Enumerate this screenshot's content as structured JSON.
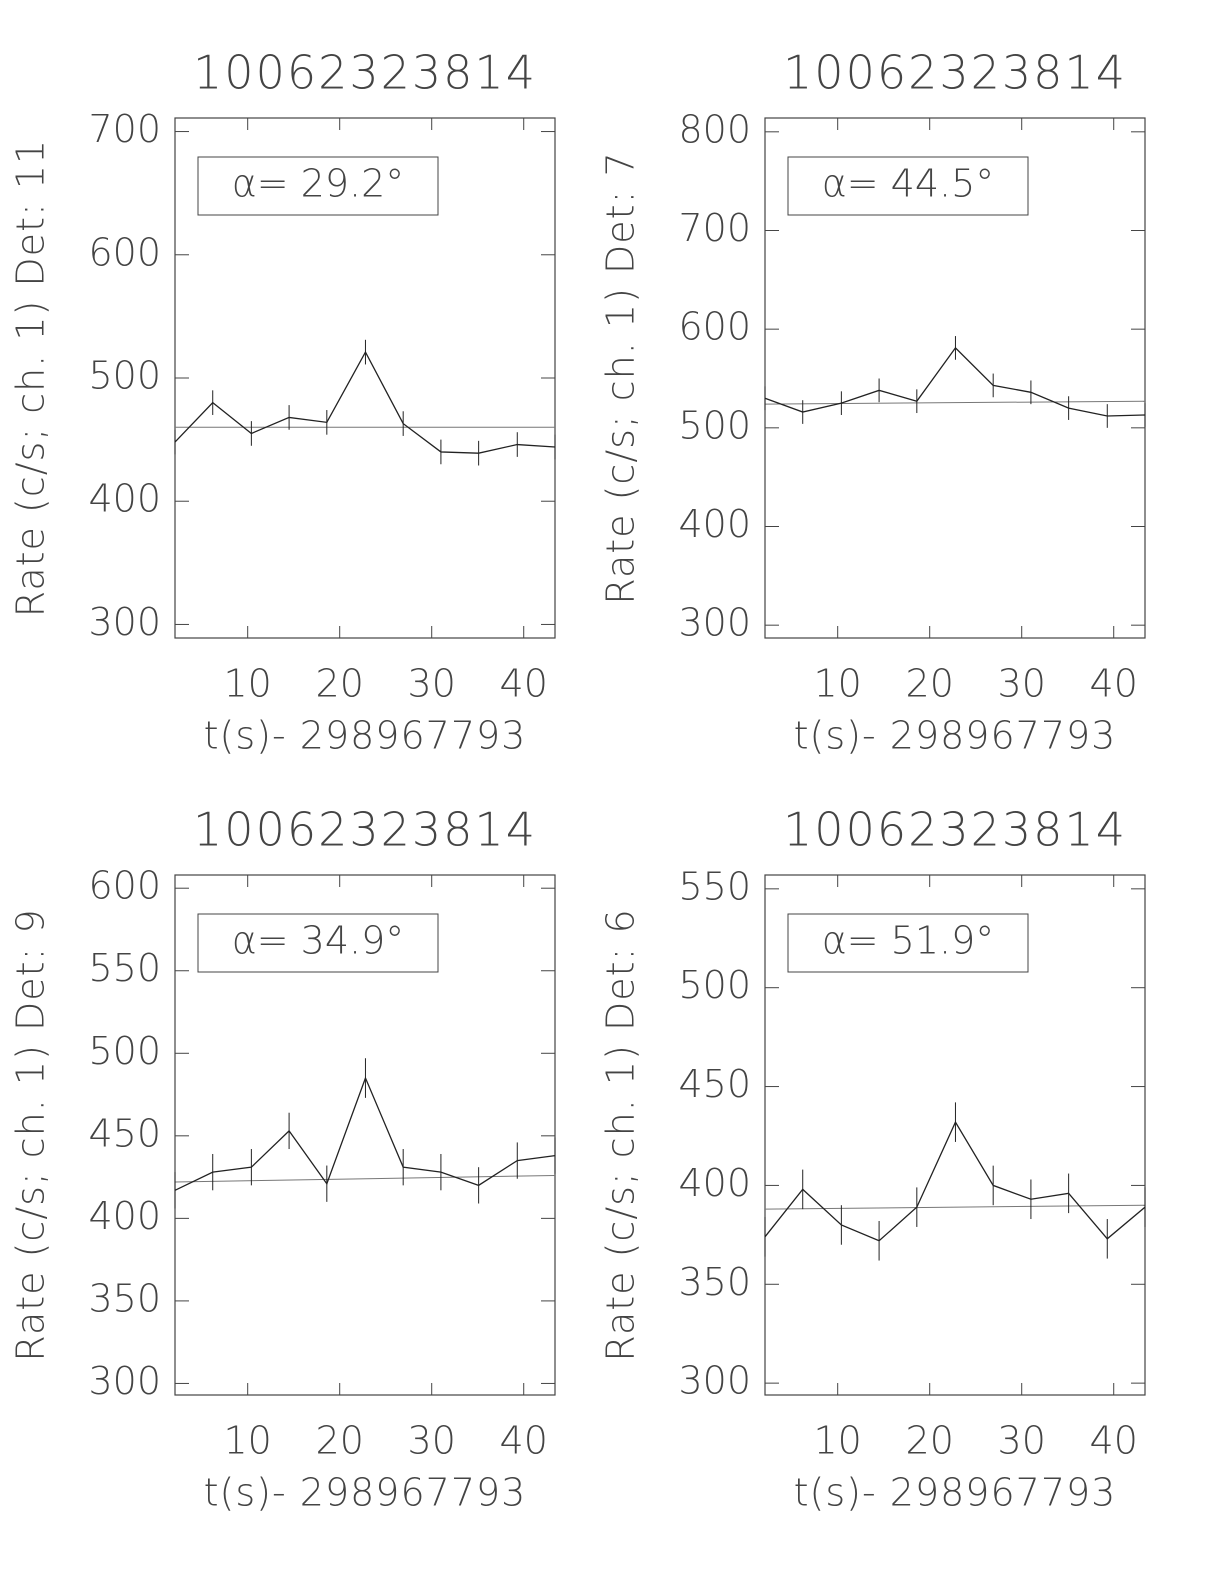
{
  "chart_data": [
    {
      "type": "line",
      "title": "10062323814",
      "x_label": "t(s)- 298967793",
      "y_label": "Rate (c/s; ch. 1) Det: 11",
      "annotation": "α= 29.2°",
      "x": [
        2.1,
        6.2,
        10.4,
        14.5,
        18.6,
        22.8,
        26.9,
        31.0,
        35.1,
        39.3,
        43.4
      ],
      "values": [
        448,
        480,
        455,
        468,
        464,
        521,
        463,
        440,
        439,
        446,
        444
      ],
      "errors": [
        10,
        10,
        10,
        10,
        10,
        10,
        10,
        10,
        10,
        10,
        10
      ],
      "fit_x": [
        2.1,
        43.4
      ],
      "fit_values": [
        460,
        460
      ],
      "xlim": [
        2.1,
        43.4
      ],
      "xticks": [
        10,
        20,
        30,
        40
      ],
      "ylim": [
        289,
        711
      ],
      "yticks": [
        300,
        400,
        500,
        600,
        700
      ],
      "color": "#222"
    },
    {
      "type": "line",
      "title": "10062323814",
      "x_label": "t(s)- 298967793",
      "y_label": "Rate (c/s; ch. 1) Det: 7",
      "annotation": "α= 44.5°",
      "x": [
        2.1,
        6.2,
        10.4,
        14.5,
        18.6,
        22.8,
        26.9,
        31.0,
        35.1,
        39.3,
        43.4
      ],
      "values": [
        530,
        516,
        525,
        538,
        527,
        581,
        543,
        536,
        520,
        512,
        513
      ],
      "errors": [
        12,
        12,
        12,
        12,
        12,
        12,
        12,
        12,
        12,
        12,
        12
      ],
      "fit_x": [
        2.1,
        43.4
      ],
      "fit_values": [
        524,
        527
      ],
      "xlim": [
        2.1,
        43.4
      ],
      "xticks": [
        10,
        20,
        30,
        40
      ],
      "ylim": [
        287,
        814
      ],
      "yticks": [
        300,
        400,
        500,
        600,
        700,
        800
      ],
      "color": "#222"
    },
    {
      "type": "line",
      "title": "10062323814",
      "x_label": "t(s)- 298967793",
      "y_label": "Rate (c/s; ch. 1) Det: 9",
      "annotation": "α= 34.9°",
      "x": [
        2.1,
        6.2,
        10.4,
        14.5,
        18.6,
        22.8,
        26.9,
        31.0,
        35.1,
        39.3,
        43.4
      ],
      "values": [
        417,
        428,
        431,
        453,
        421,
        485,
        431,
        428,
        420,
        435,
        438
      ],
      "errors": [
        11,
        11,
        11,
        11,
        11,
        12,
        11,
        11,
        11,
        11,
        11
      ],
      "fit_x": [
        2.1,
        43.4
      ],
      "fit_values": [
        422,
        426
      ],
      "xlim": [
        2.1,
        43.4
      ],
      "xticks": [
        10,
        20,
        30,
        40
      ],
      "ylim": [
        293,
        608
      ],
      "yticks": [
        300,
        350,
        400,
        450,
        500,
        550,
        600
      ],
      "color": "#222"
    },
    {
      "type": "line",
      "title": "10062323814",
      "x_label": "t(s)- 298967793",
      "y_label": "Rate (c/s; ch. 1) Det: 6",
      "annotation": "α= 51.9°",
      "x": [
        2.1,
        6.2,
        10.4,
        14.5,
        18.6,
        22.8,
        26.9,
        31.0,
        35.1,
        39.3,
        43.4
      ],
      "values": [
        374,
        398,
        380,
        372,
        389,
        432,
        400,
        393,
        396,
        373,
        389
      ],
      "errors": [
        10,
        10,
        10,
        10,
        10,
        10,
        10,
        10,
        10,
        10,
        10
      ],
      "fit_x": [
        2.1,
        43.4
      ],
      "fit_values": [
        388,
        390
      ],
      "xlim": [
        2.1,
        43.4
      ],
      "xticks": [
        10,
        20,
        30,
        40
      ],
      "ylim": [
        294,
        557
      ],
      "yticks": [
        300,
        350,
        400,
        450,
        500,
        550
      ],
      "color": "#222"
    }
  ]
}
